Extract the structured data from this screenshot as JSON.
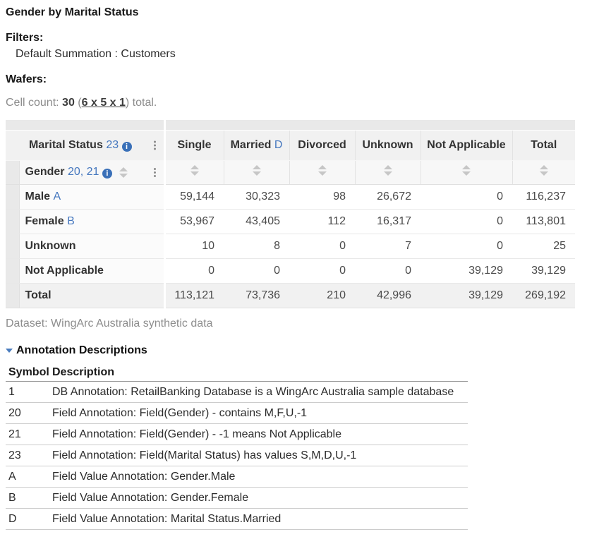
{
  "title": "Gender by Marital Status",
  "filters": {
    "label": "Filters:",
    "value": "Default Summation : Customers"
  },
  "wafers": {
    "label": "Wafers:"
  },
  "cell_count": {
    "prefix": "Cell count:",
    "count": "30",
    "open": "(",
    "dims": "6 x 5 x 1",
    "close": ")",
    "suffix": " total."
  },
  "pivot": {
    "col_field": {
      "name": "Marital Status",
      "annotation_refs": "23"
    },
    "row_field": {
      "name": "Gender",
      "annotation_refs": "20, 21"
    },
    "columns": [
      {
        "label": "Single",
        "note": ""
      },
      {
        "label": "Married",
        "note": "D"
      },
      {
        "label": "Divorced",
        "note": ""
      },
      {
        "label": "Unknown",
        "note": ""
      },
      {
        "label": "Not Applicable",
        "note": ""
      },
      {
        "label": "Total",
        "note": ""
      }
    ],
    "rows": [
      {
        "label": "Male",
        "note": "A",
        "values": [
          "59,144",
          "30,323",
          "98",
          "26,672",
          "0",
          "116,237"
        ],
        "is_total": false
      },
      {
        "label": "Female",
        "note": "B",
        "values": [
          "53,967",
          "43,405",
          "112",
          "16,317",
          "0",
          "113,801"
        ],
        "is_total": false
      },
      {
        "label": "Unknown",
        "note": "",
        "values": [
          "10",
          "8",
          "0",
          "7",
          "0",
          "25"
        ],
        "is_total": false
      },
      {
        "label": "Not Applicable",
        "note": "",
        "values": [
          "0",
          "0",
          "0",
          "0",
          "39,129",
          "39,129"
        ],
        "is_total": false
      },
      {
        "label": "Total",
        "note": "",
        "values": [
          "113,121",
          "73,736",
          "210",
          "42,996",
          "39,129",
          "269,192"
        ],
        "is_total": true
      }
    ]
  },
  "dataset_note": "Dataset: WingArc Australia synthetic data",
  "annotations": {
    "header": "Annotation Descriptions",
    "col_symbol": "Symbol",
    "col_description": "Description",
    "rows": [
      {
        "symbol": "1",
        "description": "DB Annotation: RetailBanking Database is a WingArc Australia sample database"
      },
      {
        "symbol": "20",
        "description": "Field Annotation: Field(Gender) - contains M,F,U,-1"
      },
      {
        "symbol": "21",
        "description": "Field Annotation: Field(Gender) - -1 means Not Applicable"
      },
      {
        "symbol": "23",
        "description": "Field Annotation: Field(Marital Status) has values S,M,D,U,-1"
      },
      {
        "symbol": "A",
        "description": "Field Value Annotation: Gender.Male"
      },
      {
        "symbol": "B",
        "description": "Field Value Annotation: Gender.Female"
      },
      {
        "symbol": "D",
        "description": "Field Value Annotation: Marital Status.Married"
      }
    ]
  },
  "colors": {
    "accent_blue": "#4678bf",
    "info_icon_bg": "#3a70b8",
    "header_bg": "#f1f1f1",
    "strip_bg": "#e9e9e9"
  }
}
